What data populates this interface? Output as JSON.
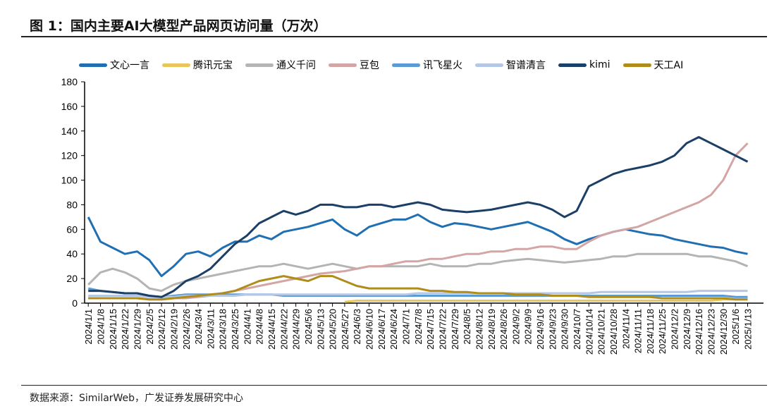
{
  "title": "图 1：国内主要AI大模型产品网页访问量（万次）",
  "source": "数据来源：SimilarWeb，广发证券发展研究中心",
  "chart_data": {
    "type": "line",
    "title": "国内主要AI大模型产品网页访问量（万次）",
    "ylim": [
      0,
      180
    ],
    "yticks": [
      0,
      20,
      40,
      60,
      80,
      100,
      120,
      140,
      160,
      180
    ],
    "legend_position": "top",
    "categories": [
      "2024/1/1",
      "2024/1/8",
      "2024/1/15",
      "2024/1/22",
      "2024/1/29",
      "2024/2/5",
      "2024/2/12",
      "2024/2/19",
      "2024/2/26",
      "2024/3/4",
      "2024/3/11",
      "2024/3/18",
      "2024/3/25",
      "2024/4/1",
      "2024/4/8",
      "2024/4/15",
      "2024/4/22",
      "2024/4/29",
      "2024/5/6",
      "2024/5/13",
      "2024/5/20",
      "2024/5/27",
      "2024/6/3",
      "2024/6/10",
      "2024/6/17",
      "2024/6/24",
      "2024/7/1",
      "2024/7/8",
      "2024/7/15",
      "2024/7/22",
      "2024/7/29",
      "2024/8/5",
      "2024/8/12",
      "2024/8/19",
      "2024/8/26",
      "2024/9/2",
      "2024/9/9",
      "2024/9/16",
      "2024/9/23",
      "2024/9/30",
      "2024/10/7",
      "2024/10/14",
      "2024/10/21",
      "2024/10/28",
      "2024/11/4",
      "2024/11/11",
      "2024/11/18",
      "2024/11/25",
      "2024/12/2",
      "2024/12/9",
      "2024/12/16",
      "2024/12/23",
      "2024/12/30",
      "2025/1/6",
      "2025/1/13"
    ],
    "series": [
      {
        "name": "文心一言",
        "color": "#1f6fb2",
        "values": [
          70,
          50,
          45,
          40,
          42,
          35,
          22,
          30,
          40,
          42,
          38,
          45,
          50,
          50,
          55,
          52,
          58,
          60,
          62,
          65,
          68,
          60,
          55,
          62,
          65,
          68,
          68,
          72,
          66,
          62,
          65,
          64,
          62,
          60,
          62,
          64,
          66,
          62,
          58,
          52,
          48,
          52,
          55,
          58,
          60,
          58,
          56,
          55,
          52,
          50,
          48,
          46,
          45,
          42,
          40
        ]
      },
      {
        "name": "腾讯元宝",
        "color": "#e8c65a",
        "values": [
          null,
          null,
          null,
          null,
          null,
          null,
          null,
          null,
          null,
          null,
          null,
          null,
          null,
          null,
          null,
          null,
          null,
          null,
          null,
          null,
          null,
          1,
          2,
          2,
          2,
          2,
          2,
          2,
          2,
          2,
          2,
          2,
          2,
          2,
          2,
          2,
          2,
          2,
          2,
          2,
          2,
          2,
          2,
          2,
          2,
          2,
          2,
          2,
          2,
          2,
          2,
          2,
          3,
          3,
          3
        ]
      },
      {
        "name": "通义千问",
        "color": "#b4b4b4",
        "values": [
          15,
          25,
          28,
          25,
          20,
          12,
          10,
          15,
          18,
          20,
          22,
          24,
          26,
          28,
          30,
          30,
          32,
          30,
          28,
          30,
          32,
          30,
          28,
          30,
          30,
          30,
          30,
          30,
          32,
          30,
          30,
          30,
          32,
          32,
          34,
          35,
          36,
          35,
          34,
          33,
          34,
          35,
          36,
          38,
          38,
          40,
          40,
          40,
          40,
          40,
          38,
          38,
          36,
          34,
          30
        ]
      },
      {
        "name": "豆包",
        "color": "#d4a5a5",
        "values": [
          4,
          4,
          4,
          4,
          4,
          3,
          3,
          4,
          4,
          5,
          6,
          8,
          10,
          12,
          14,
          16,
          18,
          20,
          22,
          24,
          25,
          26,
          28,
          30,
          30,
          32,
          34,
          34,
          36,
          36,
          38,
          40,
          40,
          42,
          42,
          44,
          44,
          46,
          46,
          44,
          44,
          50,
          55,
          58,
          60,
          62,
          66,
          70,
          74,
          78,
          82,
          88,
          100,
          120,
          130
        ]
      },
      {
        "name": "讯飞星火",
        "color": "#5b9bd5",
        "values": [
          12,
          10,
          9,
          8,
          8,
          6,
          5,
          6,
          7,
          7,
          7,
          7,
          7,
          7,
          7,
          7,
          6,
          6,
          6,
          6,
          6,
          6,
          6,
          6,
          6,
          6,
          6,
          6,
          6,
          6,
          6,
          6,
          6,
          6,
          6,
          6,
          6,
          6,
          6,
          6,
          6,
          6,
          6,
          6,
          6,
          6,
          6,
          6,
          6,
          6,
          6,
          6,
          6,
          5,
          5
        ]
      },
      {
        "name": "智谱清言",
        "color": "#b4c7e7",
        "values": [
          6,
          6,
          6,
          6,
          6,
          5,
          5,
          5,
          6,
          6,
          6,
          6,
          6,
          7,
          7,
          7,
          7,
          7,
          7,
          7,
          7,
          7,
          7,
          7,
          7,
          7,
          7,
          8,
          8,
          8,
          8,
          8,
          8,
          8,
          8,
          8,
          8,
          8,
          8,
          8,
          8,
          8,
          9,
          9,
          9,
          9,
          9,
          9,
          9,
          9,
          10,
          10,
          10,
          10,
          10
        ]
      },
      {
        "name": "kimi",
        "color": "#1b3f66",
        "values": [
          10,
          10,
          9,
          8,
          8,
          6,
          5,
          10,
          18,
          22,
          28,
          38,
          48,
          55,
          65,
          70,
          75,
          72,
          75,
          80,
          80,
          78,
          78,
          80,
          80,
          78,
          80,
          82,
          80,
          76,
          75,
          74,
          75,
          76,
          78,
          80,
          82,
          80,
          76,
          70,
          75,
          95,
          100,
          105,
          108,
          110,
          112,
          115,
          120,
          130,
          135,
          130,
          125,
          120,
          115
        ]
      },
      {
        "name": "天工AI",
        "color": "#b08d1a",
        "values": [
          4,
          4,
          4,
          4,
          4,
          3,
          3,
          4,
          5,
          6,
          7,
          8,
          10,
          14,
          18,
          20,
          22,
          20,
          18,
          22,
          22,
          18,
          14,
          12,
          12,
          12,
          12,
          12,
          10,
          10,
          9,
          9,
          8,
          8,
          8,
          7,
          7,
          7,
          6,
          6,
          6,
          5,
          5,
          5,
          5,
          5,
          5,
          4,
          4,
          4,
          4,
          4,
          4,
          3,
          3
        ]
      }
    ]
  }
}
